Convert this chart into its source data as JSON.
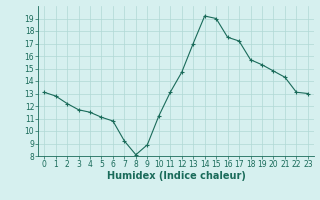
{
  "x": [
    0,
    1,
    2,
    3,
    4,
    5,
    6,
    7,
    8,
    9,
    10,
    11,
    12,
    13,
    14,
    15,
    16,
    17,
    18,
    19,
    20,
    21,
    22,
    23
  ],
  "y": [
    13.1,
    12.8,
    12.2,
    11.7,
    11.5,
    11.1,
    10.8,
    9.2,
    8.1,
    8.9,
    11.2,
    13.1,
    14.7,
    17.0,
    19.2,
    19.0,
    17.5,
    17.2,
    15.7,
    15.3,
    14.8,
    14.3,
    13.1,
    13.0
  ],
  "line_color": "#1a6b5a",
  "marker": "+",
  "bg_color": "#d6f0ef",
  "grid_color": "#b0d8d5",
  "xlabel": "Humidex (Indice chaleur)",
  "ylim": [
    8,
    20
  ],
  "xlim": [
    -0.5,
    23.5
  ],
  "yticks": [
    8,
    9,
    10,
    11,
    12,
    13,
    14,
    15,
    16,
    17,
    18,
    19
  ],
  "xticks": [
    0,
    1,
    2,
    3,
    4,
    5,
    6,
    7,
    8,
    9,
    10,
    11,
    12,
    13,
    14,
    15,
    16,
    17,
    18,
    19,
    20,
    21,
    22,
    23
  ],
  "tick_color": "#1a6b5a",
  "label_color": "#1a6b5a",
  "font_size": 5.5,
  "xlabel_fontsize": 7
}
